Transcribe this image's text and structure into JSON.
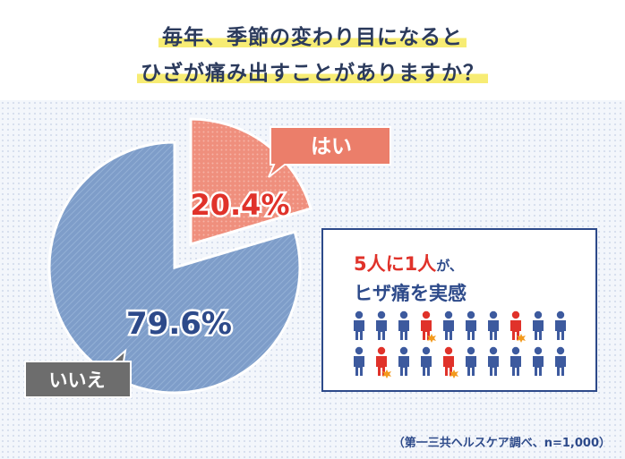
{
  "title": {
    "line1": "毎年、季節の変わり目になると",
    "line2": "ひざが痛み出すことがありますか？"
  },
  "chart_data": {
    "type": "pie",
    "slices": [
      {
        "label": "はい",
        "value": 20.4,
        "value_label": "20.4%",
        "color": "#ef8f7d"
      },
      {
        "label": "いいえ",
        "value": 79.6,
        "value_label": "79.6%",
        "color": "#7e9dc9"
      }
    ]
  },
  "info": {
    "line1_emph": "5人に1人",
    "line1_tail": "が、",
    "line2": "ヒザ痛を実感",
    "people": {
      "rows": 2,
      "cols": 10,
      "affected": 4,
      "total": 20,
      "normal_color": "#3d5a9e",
      "affected_color": "#e0322a"
    }
  },
  "source": "（第一三共ヘルスケア調べ、n=1,000）"
}
